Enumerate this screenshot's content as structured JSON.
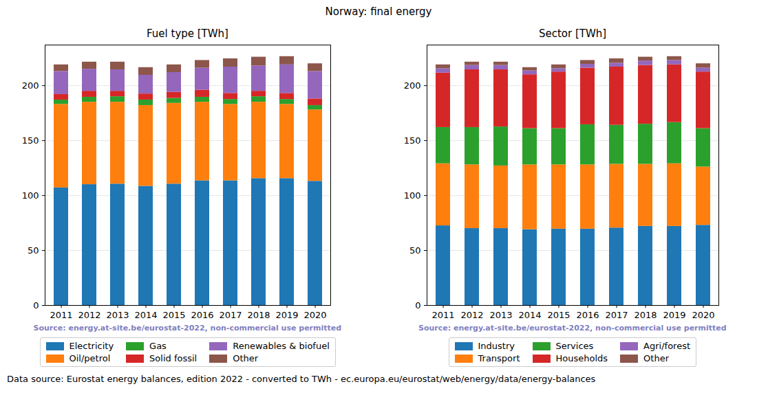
{
  "title": "Norway: final energy",
  "caption": "Data source: Eurostat energy balances, edition 2022 - converted to TWh - ec.europa.eu/eurostat/web/energy/data/energy-balances",
  "chart_data": [
    {
      "type": "bar",
      "stacked": true,
      "title": "Fuel type [TWh]",
      "annotation": "Source: energy.at-site.be/eurostat-2022, non-commercial use permitted",
      "categories": [
        "2011",
        "2012",
        "2013",
        "2014",
        "2015",
        "2016",
        "2017",
        "2018",
        "2019",
        "2020"
      ],
      "series": [
        {
          "name": "Electricity",
          "color": "#1f77b4",
          "values": [
            107,
            110,
            110.5,
            108.5,
            110.5,
            113.5,
            113.5,
            115.5,
            115.5,
            113
          ]
        },
        {
          "name": "Oil/petrol",
          "color": "#ff7f0e",
          "values": [
            76,
            75,
            74.5,
            73.5,
            73.5,
            71.5,
            69.5,
            69.5,
            67.5,
            65
          ]
        },
        {
          "name": "Gas",
          "color": "#2ca02c",
          "values": [
            4,
            4.5,
            5,
            5,
            4.5,
            4.5,
            4.5,
            5,
            4.5,
            4
          ]
        },
        {
          "name": "Solid fossil",
          "color": "#d62728",
          "values": [
            5,
            5.5,
            5,
            5.5,
            5.5,
            6.5,
            5.5,
            5,
            5.5,
            6
          ]
        },
        {
          "name": "Renewables & biofuel",
          "color": "#9467bd",
          "values": [
            21,
            20,
            19.5,
            17,
            18,
            20,
            24,
            23,
            26,
            25
          ]
        },
        {
          "name": "Other",
          "color": "#8c564b",
          "values": [
            6,
            6.5,
            7,
            7,
            7,
            7,
            7.5,
            8,
            7.5,
            7
          ]
        }
      ],
      "ylim": [
        0,
        237
      ],
      "yticks": [
        0,
        50,
        100,
        150,
        200
      ],
      "grid": true,
      "legend": "bottom"
    },
    {
      "type": "bar",
      "stacked": true,
      "title": "Sector [TWh]",
      "annotation": "Source: energy.at-site.be/eurostat-2022, non-commercial use permitted",
      "categories": [
        "2011",
        "2012",
        "2013",
        "2014",
        "2015",
        "2016",
        "2017",
        "2018",
        "2019",
        "2020"
      ],
      "series": [
        {
          "name": "Industry",
          "color": "#1f77b4",
          "values": [
            72.5,
            70,
            70,
            69,
            69.5,
            69.5,
            70.5,
            72,
            72,
            73
          ]
        },
        {
          "name": "Transport",
          "color": "#ff7f0e",
          "values": [
            56.5,
            58,
            57,
            59,
            58.5,
            58.5,
            58,
            56.5,
            57,
            53
          ]
        },
        {
          "name": "Services",
          "color": "#2ca02c",
          "values": [
            33,
            34,
            35.5,
            33,
            33,
            36.5,
            35.5,
            36.5,
            37.5,
            35
          ]
        },
        {
          "name": "Households",
          "color": "#d62728",
          "values": [
            49.5,
            52.5,
            52,
            49,
            51.5,
            51.5,
            53,
            53.5,
            52.5,
            51.5
          ]
        },
        {
          "name": "Agri/forest",
          "color": "#9467bd",
          "values": [
            4,
            4,
            4,
            3.5,
            3,
            3.5,
            3.5,
            4,
            4,
            3.5
          ]
        },
        {
          "name": "Other",
          "color": "#8c564b",
          "values": [
            3.5,
            3,
            3,
            3,
            3.5,
            3.5,
            4,
            3.5,
            3.5,
            4
          ]
        }
      ],
      "ylim": [
        0,
        237
      ],
      "yticks": [
        0,
        50,
        100,
        150,
        200
      ],
      "grid": true,
      "legend": "bottom"
    }
  ]
}
